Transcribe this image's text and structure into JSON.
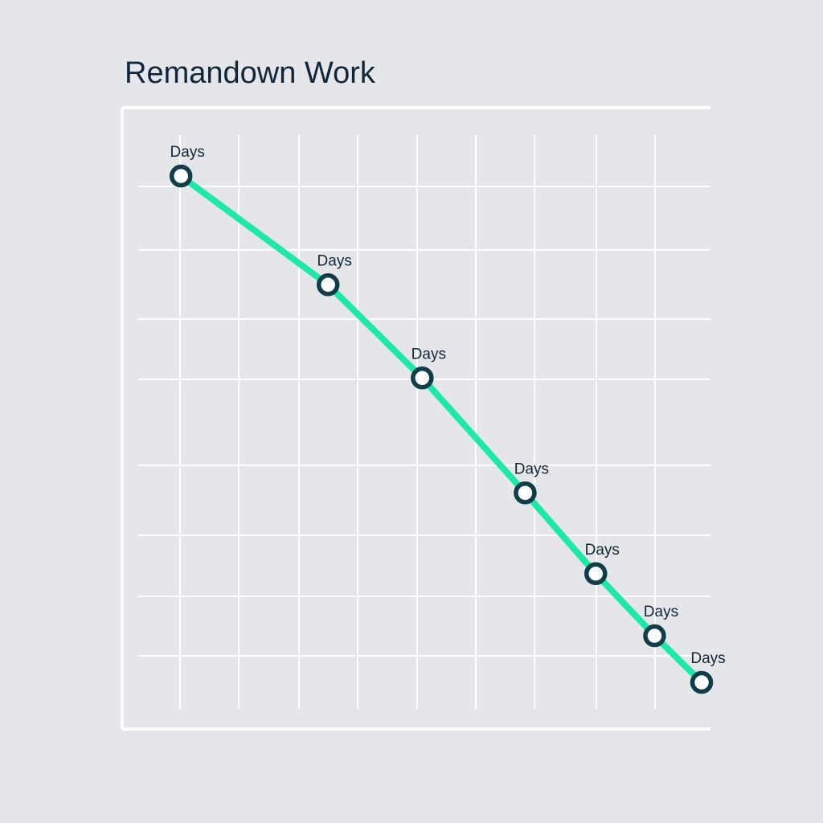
{
  "chart_data": {
    "type": "line",
    "title": "Remandown Work",
    "xlabel": "",
    "ylabel": "",
    "grid": true,
    "legend": "none",
    "x": [
      1,
      3.5,
      5.1,
      6.85,
      8.05,
      9.05,
      9.85
    ],
    "series": [
      {
        "values": [
          8.9,
          7.15,
          5.65,
          3.8,
          2.5,
          1.5,
          0.75
        ],
        "point_labels": [
          "Days",
          "Days",
          "Days",
          "Days",
          "Days",
          "Days",
          "Days"
        ]
      }
    ],
    "xlim": [
      0,
      10
    ],
    "ylim": [
      0,
      10
    ],
    "colors": {
      "line": "#1ee8a5",
      "marker_stroke": "#0f3d4a",
      "marker_fill": "#ffffff",
      "grid": "#ffffff",
      "axis": "#ffffff",
      "text": "#11263a"
    }
  }
}
